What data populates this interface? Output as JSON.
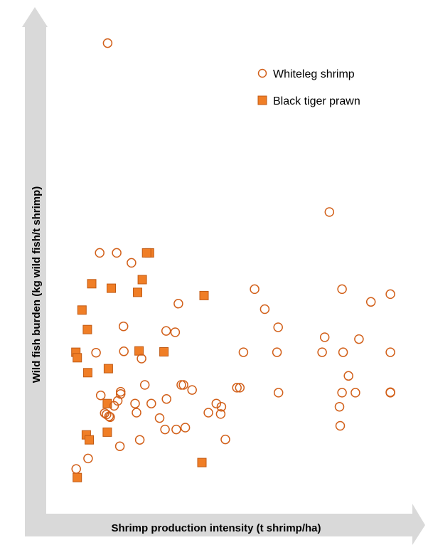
{
  "chart_data": {
    "type": "scatter",
    "title": "",
    "xlabel": "Shrimp production intensity (t shrimp/ha)",
    "ylabel": "Wild fish burden (kg wild fish/t shrimp)",
    "axis_tick_labels": false,
    "grid": false,
    "legend_position": "top-right",
    "xlim": [
      0,
      100
    ],
    "ylim": [
      0,
      100
    ],
    "series": [
      {
        "name": "Whiteleg shrimp",
        "marker": "open-circle",
        "color": "#d2601a",
        "points": [
          [
            17.2,
            95.2
          ],
          [
            15.0,
            49.0
          ],
          [
            19.7,
            49.0
          ],
          [
            23.8,
            46.8
          ],
          [
            78.6,
            58.0
          ],
          [
            82.1,
            41.0
          ],
          [
            95.5,
            39.9
          ],
          [
            57.9,
            41.0
          ],
          [
            36.8,
            37.8
          ],
          [
            60.7,
            36.6
          ],
          [
            90.1,
            38.2
          ],
          [
            64.4,
            32.6
          ],
          [
            77.3,
            30.4
          ],
          [
            21.6,
            32.8
          ],
          [
            33.4,
            31.8
          ],
          [
            35.9,
            31.5
          ],
          [
            86.8,
            30.0
          ],
          [
            14.0,
            27.0
          ],
          [
            21.7,
            27.3
          ],
          [
            26.6,
            25.7
          ],
          [
            54.8,
            27.1
          ],
          [
            64.1,
            27.1
          ],
          [
            76.6,
            27.1
          ],
          [
            82.4,
            27.1
          ],
          [
            95.5,
            27.1
          ],
          [
            83.9,
            21.9
          ],
          [
            27.5,
            19.9
          ],
          [
            20.8,
            18.4
          ],
          [
            20.8,
            17.9
          ],
          [
            64.5,
            18.2
          ],
          [
            37.6,
            19.9
          ],
          [
            38.2,
            19.9
          ],
          [
            40.6,
            18.8
          ],
          [
            53.0,
            19.3
          ],
          [
            53.8,
            19.3
          ],
          [
            82.1,
            18.2
          ],
          [
            85.8,
            18.2
          ],
          [
            95.5,
            18.3
          ],
          [
            95.5,
            18.2
          ],
          [
            15.3,
            17.6
          ],
          [
            20.0,
            16.4
          ],
          [
            33.5,
            16.8
          ],
          [
            24.8,
            15.8
          ],
          [
            29.3,
            15.8
          ],
          [
            47.3,
            15.8
          ],
          [
            19.0,
            15.3
          ],
          [
            16.4,
            13.7
          ],
          [
            16.9,
            13.4
          ],
          [
            17.6,
            13.0
          ],
          [
            17.9,
            12.8
          ],
          [
            25.2,
            13.8
          ],
          [
            31.6,
            12.6
          ],
          [
            45.1,
            13.8
          ],
          [
            48.5,
            13.5
          ],
          [
            48.7,
            15.1
          ],
          [
            81.4,
            15.1
          ],
          [
            38.7,
            10.5
          ],
          [
            36.2,
            10.1
          ],
          [
            33.1,
            10.1
          ],
          [
            81.6,
            10.9
          ],
          [
            26.1,
            7.8
          ],
          [
            20.6,
            6.4
          ],
          [
            49.8,
            7.9
          ],
          [
            11.8,
            3.7
          ],
          [
            8.5,
            1.4
          ]
        ]
      },
      {
        "name": "Black tiger prawn",
        "marker": "filled-square",
        "color": "#f07e26",
        "points": [
          [
            28.8,
            49.0
          ],
          [
            28.0,
            49.0
          ],
          [
            26.8,
            43.1
          ],
          [
            12.8,
            42.2
          ],
          [
            18.2,
            41.2
          ],
          [
            25.5,
            40.3
          ],
          [
            43.9,
            39.6
          ],
          [
            10.1,
            36.4
          ],
          [
            11.6,
            32.1
          ],
          [
            8.4,
            27.1
          ],
          [
            25.9,
            27.4
          ],
          [
            32.8,
            27.2
          ],
          [
            8.8,
            25.9
          ],
          [
            17.4,
            23.5
          ],
          [
            11.7,
            22.6
          ],
          [
            17.1,
            15.8
          ],
          [
            17.1,
            9.5
          ],
          [
            11.3,
            8.9
          ],
          [
            12.1,
            7.8
          ],
          [
            43.3,
            2.8
          ],
          [
            8.8,
            -0.5
          ]
        ]
      }
    ]
  },
  "legend": {
    "items": [
      {
        "label": "Whiteleg shrimp",
        "symbol": "open-circle",
        "color": "#d2601a"
      },
      {
        "label": "Black tiger prawn",
        "symbol": "filled-square",
        "color": "#f07e26"
      }
    ]
  },
  "axes": {
    "arrow_color": "#d9d9d9"
  }
}
